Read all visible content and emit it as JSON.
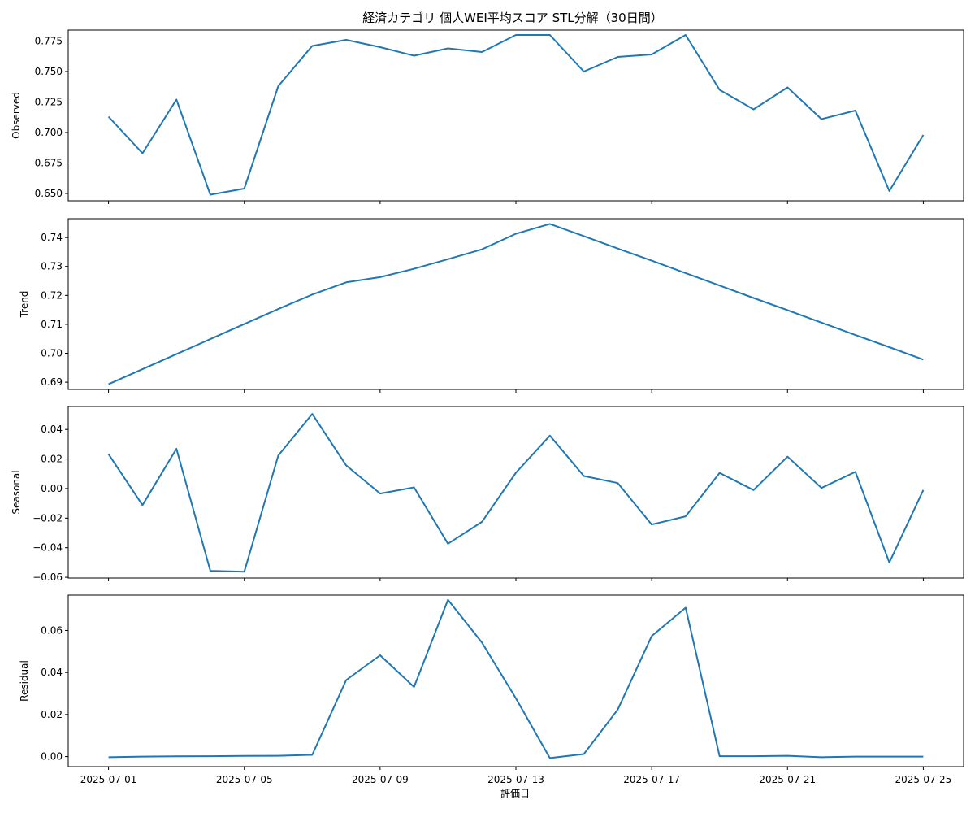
{
  "title": "経済カテゴリ 個人WEI平均スコア STL分解（30日間）",
  "xlabel": "評価日",
  "chart_data": {
    "type": "line",
    "title": "経済カテゴリ 個人WEI平均スコア STL分解（30日間）",
    "xlabel": "評価日",
    "x": [
      "2025-07-01",
      "2025-07-02",
      "2025-07-03",
      "2025-07-04",
      "2025-07-05",
      "2025-07-06",
      "2025-07-07",
      "2025-07-08",
      "2025-07-09",
      "2025-07-10",
      "2025-07-11",
      "2025-07-12",
      "2025-07-13",
      "2025-07-14",
      "2025-07-15",
      "2025-07-16",
      "2025-07-17",
      "2025-07-18",
      "2025-07-19",
      "2025-07-20",
      "2025-07-21",
      "2025-07-22",
      "2025-07-23",
      "2025-07-24",
      "2025-07-25"
    ],
    "xticks": [
      "2025-07-01",
      "2025-07-05",
      "2025-07-09",
      "2025-07-13",
      "2025-07-17",
      "2025-07-21",
      "2025-07-25"
    ],
    "panels": [
      {
        "ylabel": "Observed",
        "ylim": [
          0.644,
          0.784
        ],
        "yticks": [
          "0.650",
          "0.675",
          "0.700",
          "0.725",
          "0.750",
          "0.775"
        ],
        "yticks_val": [
          0.65,
          0.675,
          0.7,
          0.725,
          0.75,
          0.775
        ],
        "values": [
          0.713,
          0.683,
          0.727,
          0.649,
          0.654,
          0.738,
          0.771,
          0.776,
          0.77,
          0.763,
          0.769,
          0.766,
          0.78,
          0.78,
          0.75,
          0.762,
          0.764,
          0.78,
          0.735,
          0.719,
          0.737,
          0.711,
          0.718,
          0.652,
          0.698
        ]
      },
      {
        "ylabel": "Trend",
        "ylim": [
          0.6875,
          0.7465
        ],
        "yticks": [
          "0.69",
          "0.70",
          "0.71",
          "0.72",
          "0.73",
          "0.74"
        ],
        "yticks_val": [
          0.69,
          0.7,
          0.71,
          0.72,
          0.73,
          0.74
        ],
        "values": [
          0.6893,
          0.6945,
          0.6997,
          0.7049,
          0.7101,
          0.7153,
          0.7203,
          0.7245,
          0.7263,
          0.7292,
          0.7325,
          0.7359,
          0.7413,
          0.7447,
          0.7405,
          0.7362,
          0.732,
          0.7277,
          0.7234,
          0.7191,
          0.7149,
          0.7106,
          0.7063,
          0.7021,
          0.6978
        ]
      },
      {
        "ylabel": "Seasonal",
        "ylim": [
          -0.0605,
          0.0555
        ],
        "yticks": [
          "−0.06",
          "−0.04",
          "−0.02",
          "0.00",
          "0.02",
          "0.04"
        ],
        "yticks_val": [
          -0.06,
          -0.04,
          -0.02,
          0.0,
          0.02,
          0.04
        ],
        "values": [
          0.0233,
          -0.0112,
          0.0269,
          -0.0556,
          -0.0562,
          0.0223,
          0.0505,
          0.0157,
          -0.0034,
          0.0008,
          -0.0373,
          -0.0225,
          0.0107,
          0.0358,
          0.0085,
          0.0037,
          -0.0243,
          -0.0188,
          0.0106,
          -0.001,
          0.0216,
          0.0004,
          0.0113,
          -0.05,
          -0.001
        ]
      },
      {
        "ylabel": "Residual",
        "ylim": [
          -0.0048,
          0.0768
        ],
        "yticks": [
          "0.00",
          "0.02",
          "0.04",
          "0.06"
        ],
        "yticks_val": [
          0.0,
          0.02,
          0.04,
          0.06
        ],
        "values": [
          -0.0003,
          0.0,
          0.0001,
          0.0002,
          0.0003,
          0.0004,
          0.0008,
          0.0364,
          0.0482,
          0.0331,
          0.0746,
          0.0542,
          0.0277,
          -0.0007,
          0.0012,
          0.0224,
          0.0573,
          0.0708,
          0.0002,
          0.0002,
          0.0004,
          -0.0003,
          0.0,
          0.0,
          0.0
        ]
      }
    ]
  }
}
